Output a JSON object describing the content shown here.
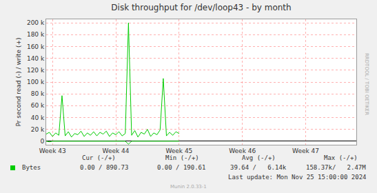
{
  "chart_data": {
    "type": "line",
    "title": "Disk throughput for /dev/loop43 - by month",
    "y_label": "Pr second read (-) / write (+)",
    "watermark": "RRDTOOL / TOBI OETIKER",
    "x": [
      42.9,
      42.95,
      43.0,
      43.05,
      43.1,
      43.15,
      43.2,
      43.25,
      43.3,
      43.35,
      43.4,
      43.45,
      43.5,
      43.55,
      43.6,
      43.65,
      43.7,
      43.75,
      43.8,
      43.85,
      43.9,
      43.95,
      44.0,
      44.05,
      44.1,
      44.15,
      44.2,
      44.25,
      44.3,
      44.35,
      44.4,
      44.45,
      44.5,
      44.55,
      44.6,
      44.65,
      44.7,
      44.75,
      44.8,
      44.85,
      44.9,
      44.95,
      45.0
    ],
    "series": [
      {
        "name": "Bytes",
        "color": "#00CC00",
        "values": [
          12000,
          15000,
          8000,
          14000,
          10000,
          77000,
          9000,
          16000,
          7000,
          13000,
          11000,
          17000,
          8000,
          14000,
          10000,
          16000,
          9000,
          15000,
          12000,
          17000,
          8000,
          14000,
          11000,
          16000,
          9000,
          13000,
          200000,
          10000,
          18000,
          7000,
          15000,
          12000,
          20000,
          8000,
          14000,
          11000,
          19000,
          106000,
          9000,
          15000,
          10000,
          16000,
          13000
        ],
        "read": [
          0,
          -1000,
          0,
          0,
          0,
          0,
          0,
          0,
          0,
          0,
          0,
          0,
          0,
          0,
          0,
          0,
          0,
          0,
          0,
          0,
          0,
          0,
          0,
          0,
          0,
          0,
          -5000,
          0,
          0,
          0,
          0,
          0,
          0,
          0,
          0,
          0,
          0,
          0,
          0,
          0,
          0,
          0,
          0
        ]
      }
    ],
    "xlim": [
      42.9,
      47.8
    ],
    "xticks": [
      {
        "value": 43,
        "label": "Week 43"
      },
      {
        "value": 44,
        "label": "Week 44"
      },
      {
        "value": 45,
        "label": "Week 45"
      },
      {
        "value": 46,
        "label": "Week 46"
      },
      {
        "value": 47,
        "label": "Week 47"
      }
    ],
    "ylim": [
      -6000,
      206000
    ],
    "yticks": [
      0,
      {
        "value": 20000,
        "label": "20 k"
      },
      {
        "value": 40000,
        "label": "40 k"
      },
      {
        "value": 60000,
        "label": "60 k"
      },
      {
        "value": 80000,
        "label": "80 k"
      },
      {
        "value": 100000,
        "label": "100 k"
      },
      {
        "value": 120000,
        "label": "120 k"
      },
      {
        "value": 140000,
        "label": "140 k"
      },
      {
        "value": 160000,
        "label": "160 k"
      },
      {
        "value": 180000,
        "label": "180 k"
      },
      {
        "value": 200000,
        "label": "200 k"
      }
    ],
    "grid": true,
    "summary": {
      "headers": [
        "Cur (-/+)",
        "Min (-/+)",
        "Avg (-/+)",
        "Max (-/+)"
      ],
      "row": {
        "name": "Bytes",
        "cells": [
          "0.00 / 890.73",
          "0.00 / 190.61",
          "39.64 /   6.14k",
          "158.37k/   2.47M"
        ]
      }
    },
    "last_update": "Last update: Mon Nov 25 15:00:00 2024",
    "footer": "Munin 2.0.33-1"
  }
}
